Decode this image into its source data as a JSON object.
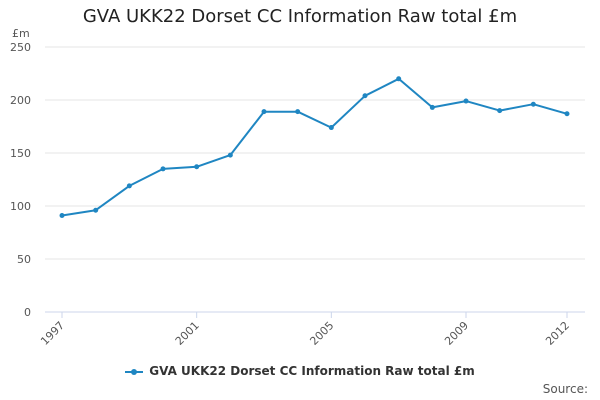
{
  "colors": {
    "series": "#1f86c2",
    "grid": "#e6e6e6",
    "axis": "#ccd6eb"
  },
  "source_label": "Source:",
  "chart_data": {
    "type": "line",
    "title": "GVA UKK22 Dorset CC Information Raw total £m",
    "ylabel": "£m",
    "xlabel": "",
    "ylim": [
      0,
      250
    ],
    "yticks": [
      0,
      50,
      100,
      150,
      200,
      250
    ],
    "xlim": [
      1997,
      2012
    ],
    "xticks": [
      1997,
      2001,
      2005,
      2009,
      2012
    ],
    "grid": true,
    "legend": "bottom-center",
    "series": [
      {
        "name": "GVA UKK22 Dorset CC Information Raw total £m",
        "x": [
          1997,
          1998,
          1999,
          2000,
          2001,
          2002,
          2003,
          2004,
          2005,
          2006,
          2007,
          2008,
          2009,
          2010,
          2011,
          2012
        ],
        "values": [
          91,
          96,
          119,
          135,
          137,
          148,
          189,
          189,
          174,
          204,
          220,
          193,
          199,
          190,
          196,
          187
        ]
      }
    ]
  }
}
